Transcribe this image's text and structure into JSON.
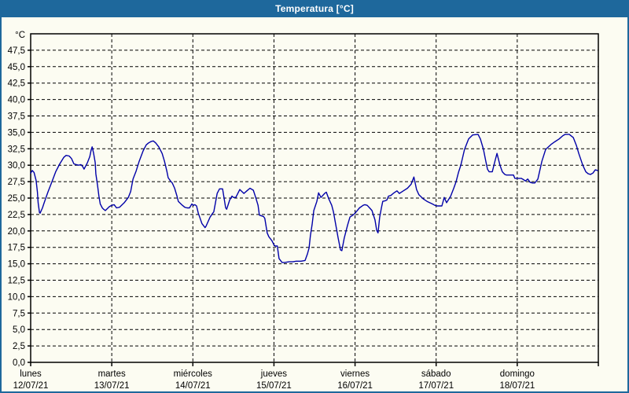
{
  "header": {
    "title": "Temperatura [°C]"
  },
  "colors": {
    "titlebar_bg": "#1e689c",
    "titlebar_text": "#ffffff",
    "frame_border": "#1e689c",
    "background": "#fcfcf2",
    "grid": "#000000",
    "axis": "#000000",
    "line": "#0000a8",
    "label_text": "#000000"
  },
  "chart_data": {
    "type": "line",
    "title": "Temperatura [°C]",
    "ylabel_unit": "°C",
    "ylim": [
      0,
      50
    ],
    "ytick_step": 2.5,
    "yticks": [
      {
        "value": 47.5,
        "label": "47,5"
      },
      {
        "value": 45.0,
        "label": "45,0"
      },
      {
        "value": 42.5,
        "label": "42,5"
      },
      {
        "value": 40.0,
        "label": "40,0"
      },
      {
        "value": 37.5,
        "label": "37,5"
      },
      {
        "value": 35.0,
        "label": "35,0"
      },
      {
        "value": 32.5,
        "label": "32,5"
      },
      {
        "value": 30.0,
        "label": "30,0"
      },
      {
        "value": 27.5,
        "label": "27,5"
      },
      {
        "value": 25.0,
        "label": "25,0"
      },
      {
        "value": 22.5,
        "label": "22,5"
      },
      {
        "value": 20.0,
        "label": "20,0"
      },
      {
        "value": 17.5,
        "label": "17,5"
      },
      {
        "value": 15.0,
        "label": "15,0"
      },
      {
        "value": 12.5,
        "label": "12,5"
      },
      {
        "value": 10.0,
        "label": "10,0"
      },
      {
        "value": 7.5,
        "label": "7,5"
      },
      {
        "value": 5.0,
        "label": "5,0"
      },
      {
        "value": 2.5,
        "label": "2,5"
      },
      {
        "value": 0.0,
        "label": "0,0"
      }
    ],
    "x_unit": "hours from Monday 00:00, total 7 days",
    "xlim": [
      0,
      168
    ],
    "grid": "dashed black, horizontal every 2.5 °C, vertical at each day boundary",
    "legend": "none",
    "days": [
      {
        "name": "lunes",
        "date": "12/07/21"
      },
      {
        "name": "martes",
        "date": "13/07/21"
      },
      {
        "name": "miércoles",
        "date": "14/07/21"
      },
      {
        "name": "jueves",
        "date": "15/07/21"
      },
      {
        "name": "viernes",
        "date": "16/07/21"
      },
      {
        "name": "sábado",
        "date": "17/07/21"
      },
      {
        "name": "domingo",
        "date": "18/07/21"
      }
    ],
    "series": [
      {
        "name": "Temperatura",
        "color": "#0000a8",
        "points": [
          [
            0,
            28.8
          ],
          [
            0.5,
            29.2
          ],
          [
            1,
            28.9
          ],
          [
            1.6,
            27.7
          ],
          [
            2,
            25.9
          ],
          [
            2.2,
            24.3
          ],
          [
            2.6,
            22.8
          ],
          [
            2.8,
            22.7
          ],
          [
            3.5,
            23.5
          ],
          [
            4,
            24.3
          ],
          [
            5.1,
            25.9
          ],
          [
            6.3,
            27.5
          ],
          [
            7.4,
            29
          ],
          [
            8.6,
            30.2
          ],
          [
            9.8,
            31.2
          ],
          [
            10.5,
            31.5
          ],
          [
            11.4,
            31.4
          ],
          [
            12.1,
            31
          ],
          [
            12.8,
            30.2
          ],
          [
            13.5,
            30.1
          ],
          [
            14.2,
            30
          ],
          [
            14.9,
            30.1
          ],
          [
            15.4,
            29.8
          ],
          [
            15.8,
            29.4
          ],
          [
            16.8,
            30.4
          ],
          [
            17.5,
            31.3
          ],
          [
            17.9,
            32.3
          ],
          [
            18.2,
            32.8
          ],
          [
            18.6,
            31.9
          ],
          [
            19.1,
            30.4
          ],
          [
            19.3,
            28.7
          ],
          [
            19.8,
            26.9
          ],
          [
            20.2,
            25.3
          ],
          [
            20.6,
            24.1
          ],
          [
            21.2,
            23.5
          ],
          [
            21.6,
            23.3
          ],
          [
            22.1,
            23.1
          ],
          [
            23.3,
            23.7
          ],
          [
            24,
            23.9
          ],
          [
            24.7,
            24
          ],
          [
            25.4,
            23.5
          ],
          [
            26.3,
            23.6
          ],
          [
            27.7,
            24.3
          ],
          [
            28.9,
            25.1
          ],
          [
            29.6,
            26
          ],
          [
            30.3,
            27.9
          ],
          [
            31.2,
            29.1
          ],
          [
            32.1,
            30.6
          ],
          [
            33.3,
            32.2
          ],
          [
            34.2,
            33.1
          ],
          [
            34.9,
            33.4
          ],
          [
            35.6,
            33.6
          ],
          [
            36.3,
            33.7
          ],
          [
            37,
            33.4
          ],
          [
            37.9,
            32.8
          ],
          [
            38.9,
            31.8
          ],
          [
            39.6,
            30.6
          ],
          [
            40.3,
            29.1
          ],
          [
            40.7,
            28.1
          ],
          [
            41.4,
            27.6
          ],
          [
            41.9,
            27.3
          ],
          [
            42.6,
            26.5
          ],
          [
            43.3,
            25.3
          ],
          [
            43.7,
            24.5
          ],
          [
            44.9,
            23.9
          ],
          [
            45.6,
            23.6
          ],
          [
            46.3,
            23.5
          ],
          [
            47,
            23.5
          ],
          [
            47.7,
            24.1
          ],
          [
            48.2,
            23.9
          ],
          [
            48.6,
            24
          ],
          [
            49.1,
            23.8
          ],
          [
            49.6,
            22.7
          ],
          [
            50.7,
            21.1
          ],
          [
            51.6,
            20.5
          ],
          [
            51.9,
            20.7
          ],
          [
            53.1,
            22.1
          ],
          [
            53.9,
            22.7
          ],
          [
            54.2,
            22.9
          ],
          [
            55.2,
            25.7
          ],
          [
            55.9,
            26.4
          ],
          [
            56.8,
            26.4
          ],
          [
            57.7,
            23.5
          ],
          [
            58,
            23.3
          ],
          [
            58.9,
            24.7
          ],
          [
            59.6,
            25.3
          ],
          [
            60,
            25.1
          ],
          [
            60.7,
            25.1
          ],
          [
            61.9,
            26.3
          ],
          [
            63.1,
            25.7
          ],
          [
            64,
            26.1
          ],
          [
            64.9,
            26.5
          ],
          [
            65.9,
            26.2
          ],
          [
            66.6,
            25.1
          ],
          [
            67.3,
            23.9
          ],
          [
            67.7,
            22.4
          ],
          [
            68.9,
            22.2
          ],
          [
            69.3,
            21.9
          ],
          [
            70,
            19.7
          ],
          [
            70.5,
            19.1
          ],
          [
            71.4,
            18.5
          ],
          [
            72,
            17.9
          ],
          [
            72.3,
            17.7
          ],
          [
            73,
            17.7
          ],
          [
            73.5,
            15.8
          ],
          [
            74.1,
            15.4
          ],
          [
            74.4,
            15.2
          ],
          [
            75.2,
            15.2
          ],
          [
            76.4,
            15.3
          ],
          [
            77.5,
            15.3
          ],
          [
            78.6,
            15.4
          ],
          [
            80,
            15.4
          ],
          [
            81.2,
            15.5
          ],
          [
            81.9,
            16.5
          ],
          [
            82.4,
            17.4
          ],
          [
            82.8,
            19.3
          ],
          [
            83.3,
            21
          ],
          [
            83.8,
            23.1
          ],
          [
            84.7,
            24.5
          ],
          [
            85.2,
            25.8
          ],
          [
            85.9,
            25.1
          ],
          [
            87,
            25.7
          ],
          [
            87.5,
            25.9
          ],
          [
            88.2,
            24.9
          ],
          [
            89.1,
            23.9
          ],
          [
            89.6,
            22.9
          ],
          [
            90.3,
            20.9
          ],
          [
            91,
            18.9
          ],
          [
            91.7,
            17.1
          ],
          [
            92.1,
            17
          ],
          [
            92.8,
            18.9
          ],
          [
            93.8,
            20.9
          ],
          [
            94.5,
            22.1
          ],
          [
            95.6,
            22.5
          ],
          [
            96,
            22.7
          ],
          [
            97.3,
            23.5
          ],
          [
            98.4,
            23.9
          ],
          [
            98.9,
            24
          ],
          [
            99.6,
            23.9
          ],
          [
            100.3,
            23.5
          ],
          [
            101,
            23.1
          ],
          [
            101.9,
            21.7
          ],
          [
            102.4,
            20.1
          ],
          [
            102.8,
            19.7
          ],
          [
            103.3,
            22.1
          ],
          [
            103.8,
            23.5
          ],
          [
            104.2,
            24.5
          ],
          [
            105,
            24.6
          ],
          [
            105.4,
            24.7
          ],
          [
            105.9,
            25.3
          ],
          [
            106.6,
            25.4
          ],
          [
            107.3,
            25.7
          ],
          [
            108.4,
            26.1
          ],
          [
            109.1,
            25.7
          ],
          [
            110.3,
            26.1
          ],
          [
            111.5,
            26.5
          ],
          [
            112.6,
            27.1
          ],
          [
            113.4,
            28.2
          ],
          [
            114.2,
            26.3
          ],
          [
            114.9,
            25.5
          ],
          [
            116.1,
            24.9
          ],
          [
            117.3,
            24.5
          ],
          [
            118.9,
            24.1
          ],
          [
            119.6,
            23.9
          ],
          [
            120.3,
            23.8
          ],
          [
            121.7,
            23.8
          ],
          [
            122.4,
            25.1
          ],
          [
            123.1,
            24.3
          ],
          [
            124.3,
            25.3
          ],
          [
            125.2,
            26.5
          ],
          [
            125.9,
            27.5
          ],
          [
            126.6,
            28.9
          ],
          [
            127.3,
            30
          ],
          [
            128.4,
            32.4
          ],
          [
            129.6,
            34
          ],
          [
            130.8,
            34.6
          ],
          [
            132.4,
            34.7
          ],
          [
            133.1,
            34
          ],
          [
            134,
            32.4
          ],
          [
            134.7,
            30.6
          ],
          [
            135.2,
            29.4
          ],
          [
            135.7,
            29
          ],
          [
            136.6,
            29
          ],
          [
            137.5,
            30.8
          ],
          [
            138,
            31.8
          ],
          [
            138.9,
            30
          ],
          [
            139.6,
            29
          ],
          [
            140.3,
            28.6
          ],
          [
            140.8,
            28.5
          ],
          [
            142.9,
            28.5
          ],
          [
            143.3,
            28
          ],
          [
            144,
            28
          ],
          [
            145.2,
            28
          ],
          [
            145.9,
            27.8
          ],
          [
            146.4,
            27.6
          ],
          [
            147.1,
            27.9
          ],
          [
            147.8,
            27.4
          ],
          [
            148.5,
            27.3
          ],
          [
            149.2,
            27.3
          ],
          [
            150.1,
            27.9
          ],
          [
            151.3,
            30.6
          ],
          [
            152.4,
            32.4
          ],
          [
            154.1,
            33.2
          ],
          [
            155.2,
            33.6
          ],
          [
            156.4,
            34
          ],
          [
            157.5,
            34.5
          ],
          [
            158.2,
            34.7
          ],
          [
            159.4,
            34.7
          ],
          [
            160.6,
            34.2
          ],
          [
            161.5,
            33
          ],
          [
            162.2,
            31.8
          ],
          [
            163.4,
            30
          ],
          [
            164.3,
            29
          ],
          [
            165,
            28.7
          ],
          [
            165.7,
            28.6
          ],
          [
            166.4,
            28.8
          ],
          [
            167.1,
            29.3
          ],
          [
            167.8,
            29.2
          ]
        ]
      }
    ]
  }
}
